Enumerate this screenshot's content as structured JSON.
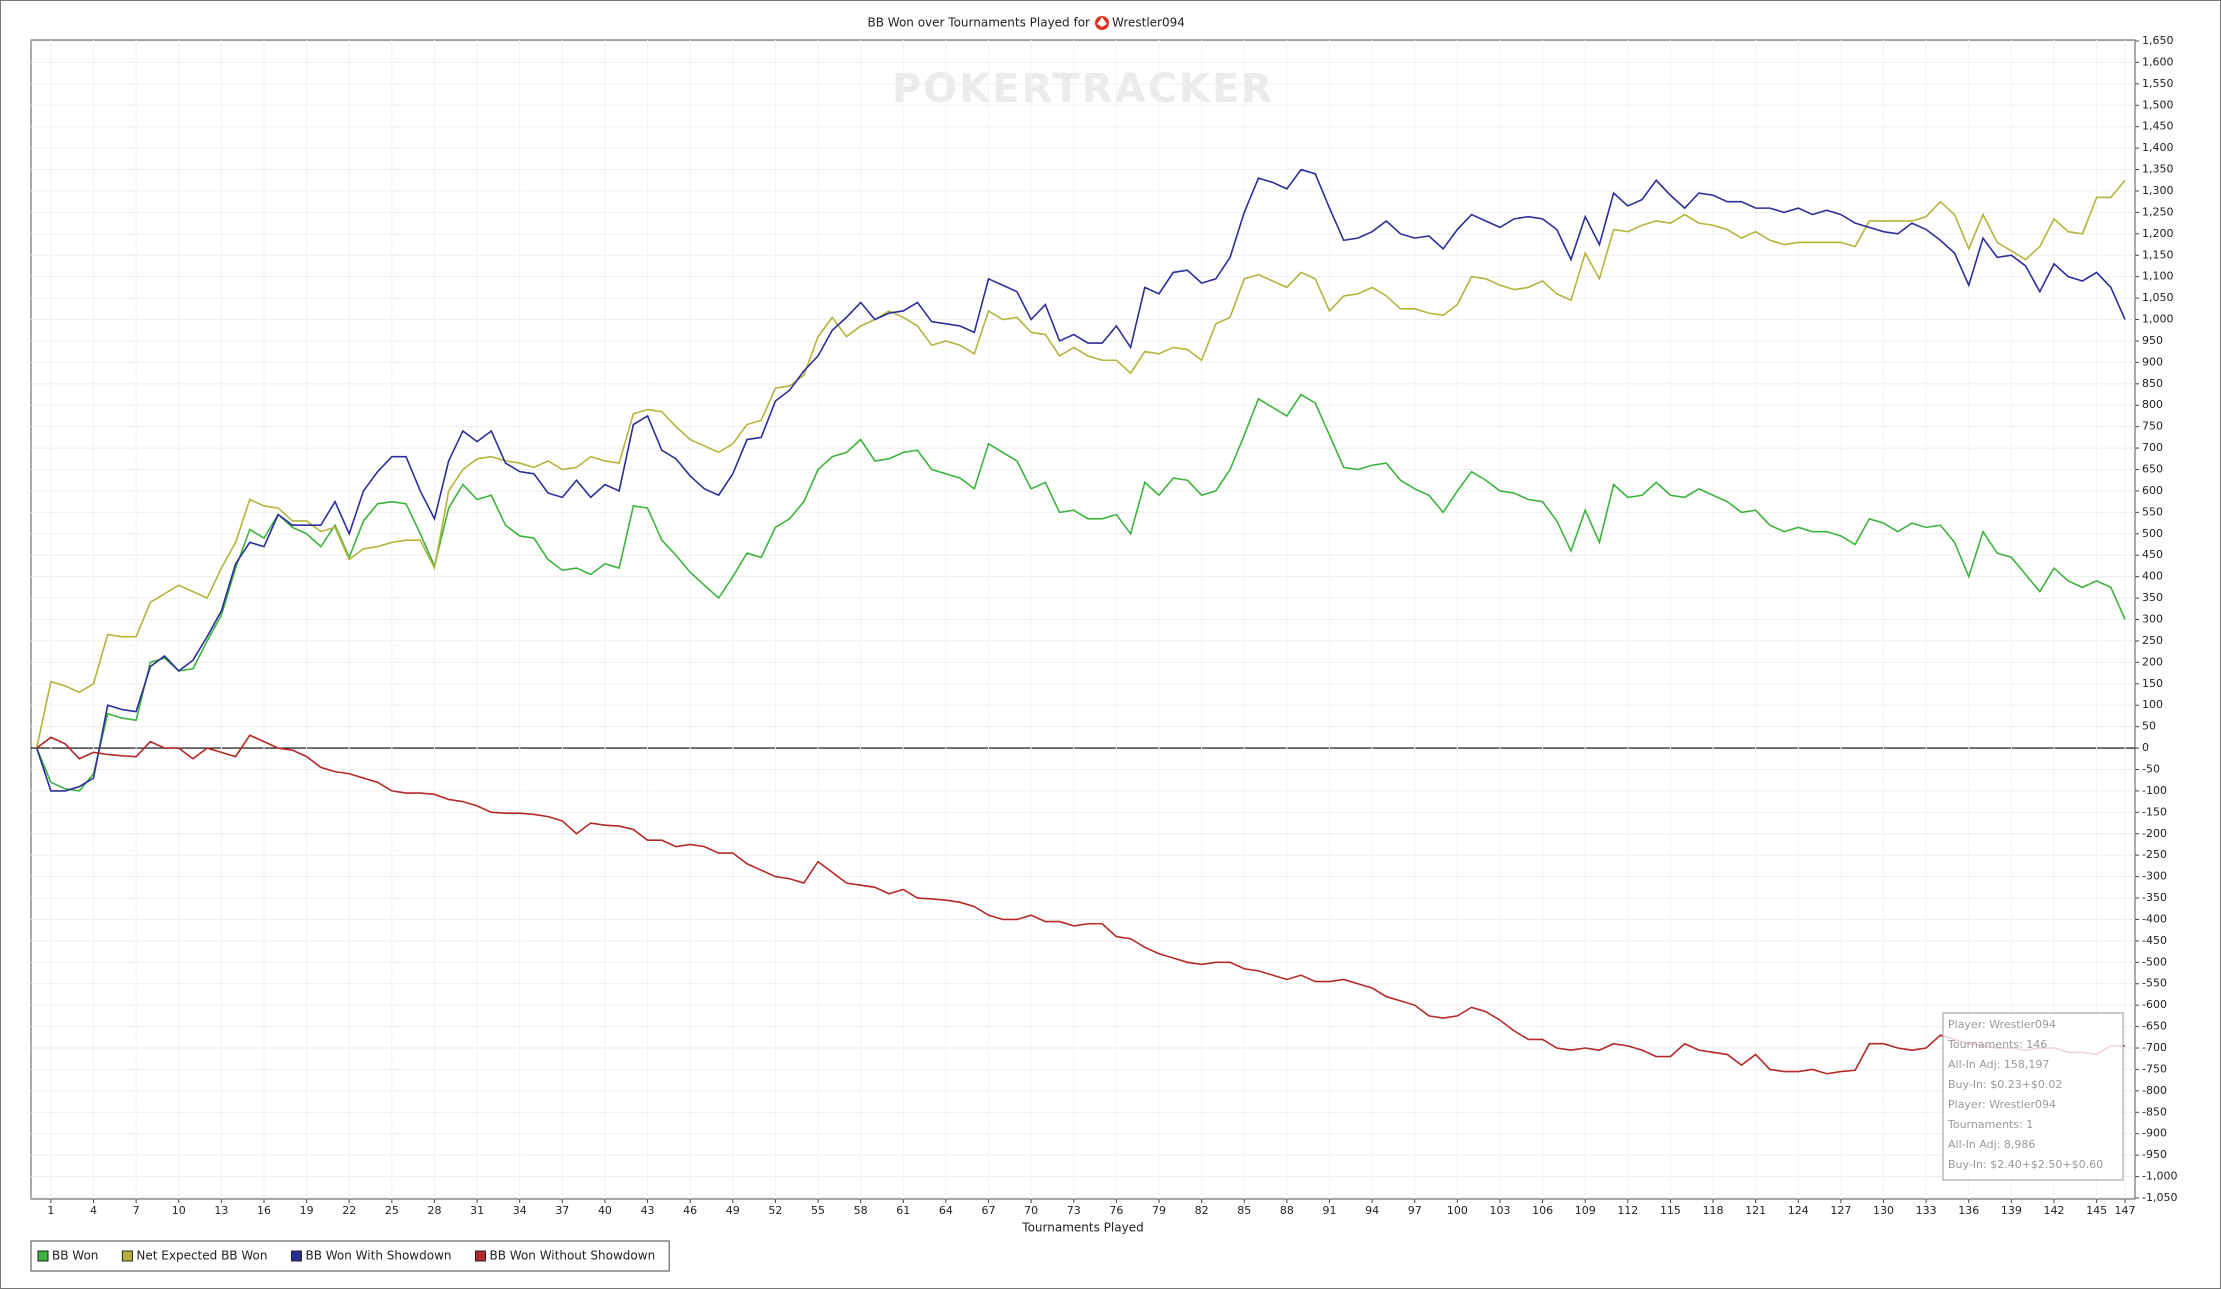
{
  "chart_data": {
    "type": "line",
    "title": "BB Won over Tournaments Played for",
    "player": "Wrestler094",
    "watermark": "POKERTRACKER",
    "xlabel": "Tournaments Played",
    "x": [
      0,
      1,
      2,
      3,
      4,
      5,
      6,
      7,
      8,
      9,
      10,
      11,
      12,
      13,
      14,
      15,
      16,
      17,
      18,
      19,
      20,
      21,
      22,
      23,
      24,
      25,
      26,
      27,
      28,
      29,
      30,
      31,
      32,
      33,
      34,
      35,
      36,
      37,
      38,
      39,
      40,
      41,
      42,
      43,
      44,
      45,
      46,
      47,
      48,
      49,
      50,
      51,
      52,
      53,
      54,
      55,
      56,
      57,
      58,
      59,
      60,
      61,
      62,
      63,
      64,
      65,
      66,
      67,
      68,
      69,
      70,
      71,
      72,
      73,
      74,
      75,
      76,
      77,
      78,
      79,
      80,
      81,
      82,
      83,
      84,
      85,
      86,
      87,
      88,
      89,
      90,
      91,
      92,
      93,
      94,
      95,
      96,
      97,
      98,
      99,
      100,
      101,
      102,
      103,
      104,
      105,
      106,
      107,
      108,
      109,
      110,
      111,
      112,
      113,
      114,
      115,
      116,
      117,
      118,
      119,
      120,
      121,
      122,
      123,
      124,
      125,
      126,
      127,
      128,
      129,
      130,
      131,
      132,
      133,
      134,
      135,
      136,
      137,
      138,
      139,
      140,
      141,
      142,
      143,
      144,
      145,
      146,
      147
    ],
    "series": [
      {
        "name": "BB Won",
        "color": "#3cb43c",
        "values": [
          0,
          -80,
          -95,
          -100,
          -60,
          80,
          70,
          65,
          200,
          210,
          180,
          185,
          250,
          310,
          420,
          510,
          490,
          545,
          515,
          500,
          470,
          520,
          445,
          530,
          570,
          575,
          570,
          500,
          425,
          560,
          615,
          580,
          590,
          520,
          495,
          490,
          440,
          415,
          420,
          405,
          430,
          420,
          565,
          560,
          485,
          450,
          410,
          380,
          350,
          400,
          455,
          445,
          515,
          535,
          575,
          650,
          680,
          690,
          720,
          670,
          675,
          690,
          695,
          650,
          640,
          630,
          605,
          710,
          690,
          670,
          605,
          620,
          550,
          555,
          535,
          535,
          545,
          500,
          620,
          590,
          630,
          625,
          590,
          600,
          650,
          730,
          815,
          795,
          775,
          825,
          805,
          730,
          655,
          650,
          660,
          665,
          625,
          605,
          590,
          550,
          600,
          645,
          625,
          600,
          595,
          580,
          575,
          530,
          460,
          555,
          480,
          615,
          585,
          590,
          620,
          590,
          585,
          605,
          590,
          575,
          550,
          555,
          520,
          505,
          515,
          505,
          505,
          495,
          475,
          535,
          525,
          505,
          525,
          515,
          520,
          480,
          400,
          505,
          455,
          445,
          405,
          365,
          420,
          390,
          375,
          390,
          375,
          300
        ]
      },
      {
        "name": "Net Expected BB Won",
        "color": "#b4b43c",
        "values": [
          0,
          155,
          145,
          130,
          150,
          265,
          260,
          260,
          340,
          360,
          380,
          365,
          350,
          420,
          480,
          580,
          565,
          560,
          530,
          530,
          505,
          515,
          440,
          465,
          470,
          480,
          485,
          485,
          420,
          600,
          650,
          675,
          680,
          670,
          665,
          655,
          670,
          650,
          655,
          680,
          670,
          665,
          780,
          790,
          785,
          750,
          720,
          705,
          690,
          710,
          755,
          765,
          840,
          845,
          870,
          960,
          1005,
          960,
          985,
          1000,
          1020,
          1005,
          985,
          940,
          950,
          940,
          920,
          1020,
          1000,
          1005,
          970,
          965,
          915,
          935,
          915,
          905,
          905,
          875,
          925,
          920,
          935,
          930,
          905,
          990,
          1005,
          1095,
          1105,
          1090,
          1075,
          1110,
          1095,
          1020,
          1055,
          1060,
          1075,
          1055,
          1025,
          1025,
          1015,
          1010,
          1035,
          1100,
          1095,
          1080,
          1070,
          1075,
          1090,
          1060,
          1045,
          1155,
          1095,
          1210,
          1205,
          1220,
          1230,
          1225,
          1245,
          1225,
          1220,
          1210,
          1190,
          1205,
          1185,
          1175,
          1180,
          1180,
          1180,
          1180,
          1170,
          1230,
          1230,
          1230,
          1230,
          1240,
          1275,
          1245,
          1165,
          1245,
          1180,
          1160,
          1140,
          1170,
          1235,
          1205,
          1200,
          1285,
          1285,
          1325
        ]
      },
      {
        "name": "BB Won With Showdown",
        "color": "#2d2d9b",
        "values": [
          0,
          -100,
          -100,
          -90,
          -70,
          100,
          90,
          85,
          190,
          215,
          180,
          205,
          260,
          320,
          430,
          480,
          470,
          545,
          520,
          520,
          520,
          575,
          500,
          600,
          645,
          680,
          680,
          600,
          535,
          670,
          740,
          715,
          740,
          665,
          645,
          640,
          595,
          585,
          625,
          585,
          615,
          600,
          755,
          775,
          695,
          675,
          635,
          605,
          590,
          640,
          720,
          725,
          810,
          835,
          880,
          915,
          975,
          1005,
          1040,
          1000,
          1015,
          1020,
          1040,
          995,
          990,
          985,
          970,
          1095,
          1080,
          1065,
          1000,
          1035,
          950,
          965,
          945,
          945,
          985,
          935,
          1075,
          1060,
          1110,
          1115,
          1085,
          1095,
          1145,
          1250,
          1330,
          1320,
          1305,
          1350,
          1340,
          1260,
          1185,
          1190,
          1205,
          1230,
          1200,
          1190,
          1195,
          1165,
          1210,
          1245,
          1230,
          1215,
          1235,
          1240,
          1235,
          1210,
          1140,
          1240,
          1175,
          1295,
          1265,
          1280,
          1325,
          1290,
          1260,
          1295,
          1290,
          1275,
          1275,
          1260,
          1260,
          1250,
          1260,
          1245,
          1255,
          1245,
          1225,
          1215,
          1205,
          1200,
          1225,
          1210,
          1185,
          1155,
          1080,
          1190,
          1145,
          1150,
          1125,
          1065,
          1130,
          1100,
          1090,
          1110,
          1075,
          1000
        ]
      },
      {
        "name": "BB Won Without Showdown",
        "color": "#b42828",
        "values": [
          0,
          25,
          10,
          -25,
          -10,
          -15,
          -18,
          -20,
          15,
          0,
          0,
          -25,
          0,
          -10,
          -20,
          30,
          15,
          0,
          -5,
          -20,
          -45,
          -55,
          -60,
          -70,
          -80,
          -100,
          -105,
          -105,
          -108,
          -120,
          -125,
          -135,
          -150,
          -152,
          -152,
          -155,
          -160,
          -170,
          -200,
          -175,
          -180,
          -182,
          -190,
          -215,
          -215,
          -230,
          -225,
          -230,
          -245,
          -245,
          -270,
          -285,
          -300,
          -305,
          -315,
          -265,
          -290,
          -315,
          -320,
          -325,
          -340,
          -330,
          -350,
          -352,
          -355,
          -360,
          -370,
          -390,
          -400,
          -400,
          -390,
          -405,
          -405,
          -415,
          -410,
          -410,
          -440,
          -445,
          -465,
          -480,
          -490,
          -500,
          -505,
          -500,
          -500,
          -515,
          -520,
          -530,
          -540,
          -530,
          -545,
          -545,
          -540,
          -550,
          -560,
          -580,
          -590,
          -600,
          -625,
          -630,
          -625,
          -605,
          -615,
          -635,
          -660,
          -680,
          -680,
          -700,
          -705,
          -700,
          -705,
          -690,
          -695,
          -705,
          -720,
          -720,
          -690,
          -705,
          -710,
          -715,
          -740,
          -715,
          -750,
          -755,
          -755,
          -750,
          -760,
          -755,
          -752,
          -690,
          -690,
          -700,
          -705,
          -700,
          -670,
          -680,
          -690,
          -695,
          -700,
          -700,
          -705,
          -700,
          -700,
          -710,
          -710,
          -715,
          -695,
          -695
        ]
      }
    ],
    "xlim": [
      -0.4,
      147.7
    ],
    "xticks": [
      1,
      4,
      7,
      10,
      13,
      16,
      19,
      22,
      25,
      28,
      31,
      34,
      37,
      40,
      43,
      46,
      49,
      52,
      55,
      58,
      61,
      64,
      67,
      70,
      73,
      76,
      79,
      82,
      85,
      88,
      91,
      94,
      97,
      100,
      103,
      106,
      109,
      112,
      115,
      118,
      121,
      124,
      127,
      130,
      133,
      136,
      139,
      142,
      145,
      147
    ],
    "ylim": [
      -1050,
      1650
    ],
    "yticks": [
      {
        "value": -1050,
        "label": "-1,050"
      },
      {
        "value": -1000,
        "label": "-1,000"
      },
      -950,
      -900,
      -850,
      -800,
      -750,
      -700,
      -650,
      -600,
      -550,
      -500,
      -450,
      -400,
      -350,
      -300,
      -250,
      -200,
      -150,
      -100,
      -50,
      0,
      50,
      100,
      150,
      200,
      250,
      300,
      350,
      400,
      450,
      500,
      550,
      600,
      650,
      700,
      750,
      800,
      850,
      900,
      950,
      {
        "value": 1000,
        "label": "1,000"
      },
      {
        "value": 1050,
        "label": "1,050"
      },
      {
        "value": 1100,
        "label": "1,100"
      },
      {
        "value": 1150,
        "label": "1,150"
      },
      {
        "value": 1200,
        "label": "1,200"
      },
      {
        "value": 1250,
        "label": "1,250"
      },
      {
        "value": 1300,
        "label": "1,300"
      },
      {
        "value": 1350,
        "label": "1,350"
      },
      {
        "value": 1400,
        "label": "1,400"
      },
      {
        "value": 1450,
        "label": "1,450"
      },
      {
        "value": 1500,
        "label": "1,500"
      },
      {
        "value": 1550,
        "label": "1,550"
      },
      {
        "value": 1600,
        "label": "1,600"
      },
      {
        "value": 1650,
        "label": "1,650"
      }
    ],
    "grid": true,
    "annotations": [
      "Player: Wrestler094",
      "Tournaments: 146",
      "All-In Adj: 158,197",
      "Buy-In: $0.23+$0.02",
      "Player: Wrestler094",
      "Tournaments: 1",
      "All-In Adj: 8,986",
      "Buy-In: $2.40+$2.50+$0.60"
    ]
  }
}
